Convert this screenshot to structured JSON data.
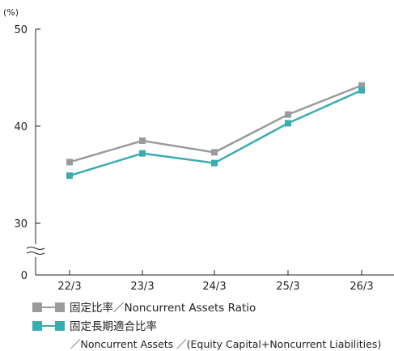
{
  "chart_data": {
    "type": "line",
    "unit_label": "(%)",
    "categories": [
      "22/3",
      "23/3",
      "24/3",
      "25/3",
      "26/3"
    ],
    "ylim": [
      0,
      50
    ],
    "yticks": [
      "50",
      "40",
      "30",
      "0"
    ],
    "axis_break": true,
    "grid": false,
    "legend_position": "bottom-left",
    "series": [
      {
        "name": "固定比率／Noncurrent Assets Ratio",
        "color": "#9b9b9b",
        "values": [
          36.3,
          38.5,
          37.3,
          41.2,
          44.2
        ]
      },
      {
        "name": "固定長期適合比率",
        "color": "#3aacb0",
        "values": [
          34.9,
          37.2,
          36.2,
          40.3,
          43.7
        ]
      }
    ],
    "note": "／Noncurrent Assets ／(Equity Capital+Noncurrent Liabilities)"
  }
}
